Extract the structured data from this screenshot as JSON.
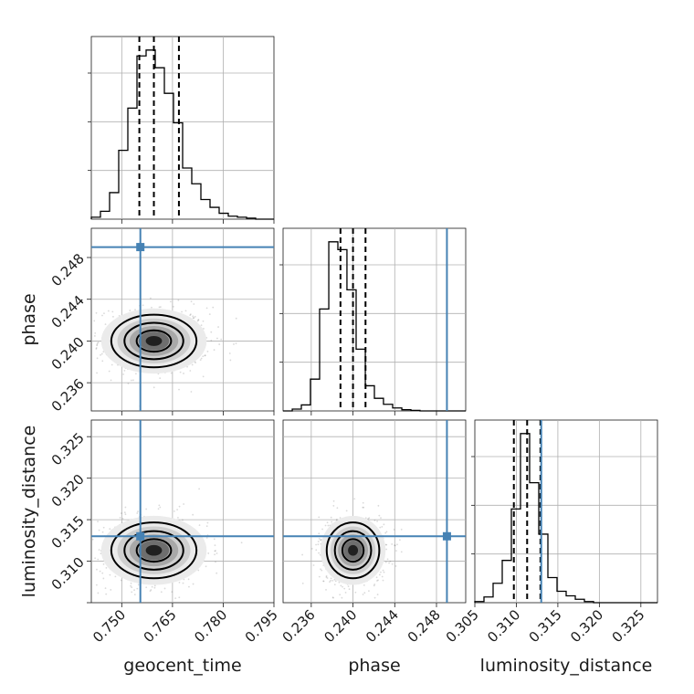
{
  "chart_data": {
    "type": "corner",
    "parameters": [
      "geocent_time",
      "phase",
      "luminosity_distance"
    ],
    "ranges": {
      "geocent_time": [
        0.741,
        0.795
      ],
      "phase": [
        0.2333,
        0.2508
      ],
      "luminosity_distance": [
        0.305,
        0.327
      ]
    },
    "ticks": {
      "geocent_time": {
        "values": [
          0.75,
          0.765,
          0.78,
          0.795
        ],
        "labels": [
          "0.750",
          "0.765",
          "0.780",
          "0.795"
        ]
      },
      "phase": {
        "values": [
          0.236,
          0.24,
          0.244,
          0.248
        ],
        "labels": [
          "0.236",
          "0.240",
          "0.244",
          "0.248"
        ]
      },
      "luminosity_distance": {
        "values": [
          0.305,
          0.31,
          0.315,
          0.32,
          0.325
        ],
        "labels": [
          "0.305",
          "0.310",
          "0.315",
          "0.320",
          "0.325"
        ]
      }
    },
    "truths": {
      "geocent_time": 0.7555,
      "phase": 0.249,
      "luminosity_distance": 0.313
    },
    "quantiles": {
      "geocent_time": [
        0.7552,
        0.7595,
        0.7669
      ],
      "phase": [
        0.2388,
        0.24,
        0.2412
      ],
      "luminosity_distance": [
        0.3097,
        0.3113,
        0.3129
      ]
    },
    "histograms": {
      "geocent_time": {
        "bins": [
          0.741,
          0.7437,
          0.7464,
          0.7491,
          0.7518,
          0.7545,
          0.7572,
          0.7599,
          0.7626,
          0.7653,
          0.768,
          0.7707,
          0.7734,
          0.7761,
          0.7788,
          0.7815,
          0.7842,
          0.7869,
          0.7896,
          0.7923,
          0.795
        ],
        "counts": [
          2,
          8,
          27,
          70,
          113,
          166,
          172,
          154,
          128,
          98,
          52,
          36,
          20,
          12,
          6,
          3,
          2,
          1,
          0,
          0
        ]
      },
      "phase": {
        "bins": [
          0.2333,
          0.23418,
          0.23505,
          0.23592,
          0.2368,
          0.23768,
          0.23855,
          0.23942,
          0.2403,
          0.24118,
          0.24205,
          0.24292,
          0.2438,
          0.24468,
          0.24555,
          0.24642,
          0.2473,
          0.24818,
          0.24905,
          0.24992,
          0.2508
        ],
        "counts": [
          0,
          3,
          10,
          53,
          170,
          282,
          269,
          202,
          103,
          42,
          21,
          11,
          5,
          2,
          1,
          0,
          0,
          0,
          0,
          0
        ]
      },
      "luminosity_distance": {
        "bins": [
          0.305,
          0.3061,
          0.3072,
          0.3083,
          0.3094,
          0.3105,
          0.3116,
          0.3127,
          0.3138,
          0.3149,
          0.316,
          0.3171,
          0.3182,
          0.3193,
          0.3204,
          0.3215,
          0.3226,
          0.3237,
          0.3248,
          0.3259,
          0.327
        ],
        "counts": [
          1,
          5,
          17,
          37,
          82,
          148,
          105,
          60,
          22,
          10,
          6,
          3,
          1,
          0,
          0,
          0,
          0,
          0,
          0,
          0
        ]
      }
    },
    "posterior_summary": {
      "mean": {
        "geocent_time": 0.7595,
        "phase": 0.24,
        "luminosity_distance": 0.3113
      },
      "std": {
        "geocent_time": 0.006,
        "phase": 0.0012,
        "luminosity_distance": 0.0016
      }
    },
    "grid": true,
    "density_contours": true
  }
}
